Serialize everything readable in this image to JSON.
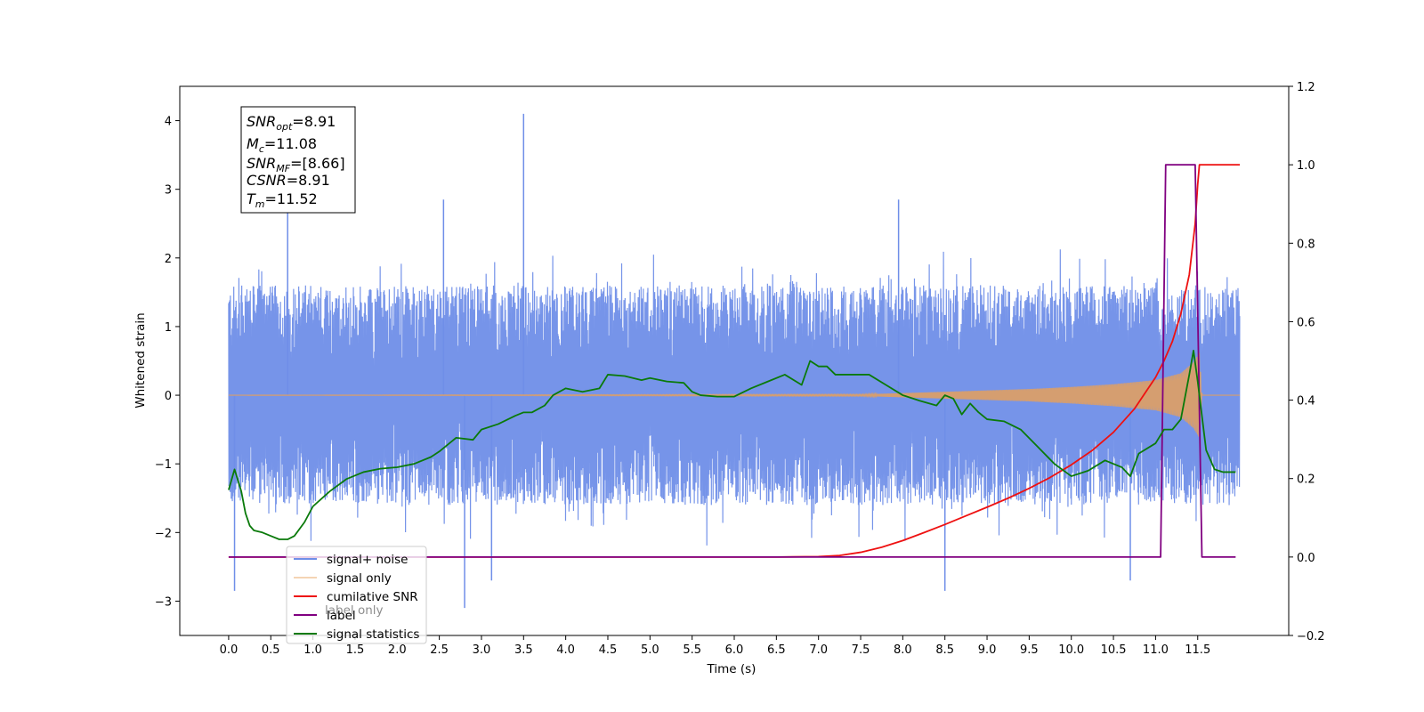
{
  "chart_data": {
    "type": "line",
    "title": "",
    "xlabel": "Time (s)",
    "ylabel_left": "Whitened strain",
    "ylabel_right": "",
    "xlim": [
      -0.58,
      12.58
    ],
    "ylim_left": [
      -3.5,
      4.5
    ],
    "ylim_right": [
      -0.2,
      1.2
    ],
    "x_ticks": [
      "0.0",
      "0.5",
      "1.0",
      "1.5",
      "2.0",
      "2.5",
      "3.0",
      "3.5",
      "4.0",
      "4.5",
      "5.0",
      "5.5",
      "6.0",
      "6.5",
      "7.0",
      "7.5",
      "8.0",
      "8.5",
      "9.0",
      "9.5",
      "10.0",
      "10.5",
      "11.0",
      "11.5"
    ],
    "y_ticks_left": [
      "−3",
      "−2",
      "−1",
      "0",
      "1",
      "2",
      "3",
      "4"
    ],
    "y_ticks_right": [
      "−0.2",
      "0.0",
      "0.2",
      "0.4",
      "0.6",
      "0.8",
      "1.0",
      "1.2"
    ],
    "colors": {
      "signal_noise": "#6f8ee8",
      "signal_only": "#e6a05a",
      "cumulative_snr": "#ee1111",
      "label": "#800080",
      "signal_statistics": "#0a7a0a"
    },
    "annotation": {
      "snr_opt": {
        "symbol": "SNR",
        "sub": "opt",
        "value": "=8.91"
      },
      "mc": {
        "symbol": "M",
        "sub": "c",
        "value": "=11.08"
      },
      "snr_mf": {
        "symbol": "SNR",
        "sub": "MF",
        "value": "=[8.66]"
      },
      "csnr": {
        "symbol": "CSNR",
        "sub": "",
        "value": "=8.91"
      },
      "tm": {
        "symbol": "T",
        "sub": "m",
        "value": "=11.52"
      }
    },
    "legend": [
      {
        "key": "signal_noise",
        "label": "signal+ noise"
      },
      {
        "key": "signal_only",
        "label": "signal only"
      },
      {
        "key": "cumulative_snr",
        "label": "cumilative SNR"
      },
      {
        "key": "label",
        "label": "label"
      },
      {
        "key": "signal_statistics",
        "label": "signal statistics"
      }
    ],
    "legend_hidden_text": "label only",
    "legend_position": "lower-left",
    "series": [
      {
        "name": "signal+ noise",
        "axis": "left",
        "x_range": [
          0,
          12
        ],
        "band": {
          "typical_min": -1.6,
          "typical_max": 1.6,
          "peak_max": 4.1,
          "peak_min": -3.1
        },
        "spikes": [
          [
            3.5,
            4.1
          ],
          [
            0.7,
            2.7
          ],
          [
            2.55,
            2.85
          ],
          [
            7.95,
            2.85
          ],
          [
            2.8,
            -3.1
          ],
          [
            0.07,
            -2.85
          ],
          [
            3.12,
            -2.7
          ],
          [
            8.5,
            -2.85
          ],
          [
            10.7,
            -2.7
          ]
        ]
      },
      {
        "name": "signal only",
        "axis": "left",
        "envelope": [
          [
            0,
            0
          ],
          [
            7.5,
            0.01
          ],
          [
            8.0,
            0.03
          ],
          [
            8.5,
            0.05
          ],
          [
            9.0,
            0.07
          ],
          [
            9.5,
            0.09
          ],
          [
            10.0,
            0.12
          ],
          [
            10.5,
            0.16
          ],
          [
            11.0,
            0.22
          ],
          [
            11.3,
            0.32
          ],
          [
            11.45,
            0.48
          ],
          [
            11.52,
            0.62
          ],
          [
            11.55,
            0
          ],
          [
            12,
            0
          ]
        ]
      },
      {
        "name": "cumilative SNR",
        "axis": "right",
        "points": [
          [
            0,
            0
          ],
          [
            6.5,
            0
          ],
          [
            7.0,
            0.001
          ],
          [
            7.25,
            0.004
          ],
          [
            7.5,
            0.012
          ],
          [
            7.75,
            0.025
          ],
          [
            8.0,
            0.042
          ],
          [
            8.25,
            0.062
          ],
          [
            8.5,
            0.083
          ],
          [
            8.75,
            0.105
          ],
          [
            9.0,
            0.127
          ],
          [
            9.25,
            0.15
          ],
          [
            9.5,
            0.175
          ],
          [
            9.75,
            0.203
          ],
          [
            10.0,
            0.235
          ],
          [
            10.25,
            0.272
          ],
          [
            10.5,
            0.318
          ],
          [
            10.75,
            0.378
          ],
          [
            11.0,
            0.458
          ],
          [
            11.1,
            0.5
          ],
          [
            11.2,
            0.55
          ],
          [
            11.3,
            0.62
          ],
          [
            11.4,
            0.72
          ],
          [
            11.47,
            0.85
          ],
          [
            11.5,
            0.95
          ],
          [
            11.52,
            1.0
          ],
          [
            12.0,
            1.0
          ]
        ]
      },
      {
        "name": "label",
        "axis": "right",
        "points": [
          [
            0,
            0
          ],
          [
            11.06,
            0
          ],
          [
            11.12,
            1.0
          ],
          [
            11.47,
            1.0
          ],
          [
            11.55,
            0
          ],
          [
            11.95,
            0
          ]
        ]
      },
      {
        "name": "signal statistics",
        "axis": "left",
        "points": [
          [
            0.0,
            -1.38
          ],
          [
            0.07,
            -1.08
          ],
          [
            0.15,
            -1.4
          ],
          [
            0.2,
            -1.72
          ],
          [
            0.25,
            -1.9
          ],
          [
            0.3,
            -1.97
          ],
          [
            0.4,
            -2.0
          ],
          [
            0.5,
            -2.05
          ],
          [
            0.6,
            -2.1
          ],
          [
            0.7,
            -2.1
          ],
          [
            0.78,
            -2.05
          ],
          [
            0.9,
            -1.85
          ],
          [
            1.0,
            -1.62
          ],
          [
            1.2,
            -1.4
          ],
          [
            1.4,
            -1.22
          ],
          [
            1.6,
            -1.12
          ],
          [
            1.8,
            -1.07
          ],
          [
            2.0,
            -1.05
          ],
          [
            2.2,
            -1.0
          ],
          [
            2.4,
            -0.9
          ],
          [
            2.5,
            -0.82
          ],
          [
            2.7,
            -0.62
          ],
          [
            2.9,
            -0.65
          ],
          [
            3.0,
            -0.5
          ],
          [
            3.2,
            -0.42
          ],
          [
            3.4,
            -0.3
          ],
          [
            3.5,
            -0.25
          ],
          [
            3.6,
            -0.25
          ],
          [
            3.75,
            -0.15
          ],
          [
            3.85,
            0.0
          ],
          [
            4.0,
            0.1
          ],
          [
            4.2,
            0.05
          ],
          [
            4.4,
            0.1
          ],
          [
            4.5,
            0.3
          ],
          [
            4.7,
            0.28
          ],
          [
            4.9,
            0.22
          ],
          [
            5.0,
            0.25
          ],
          [
            5.2,
            0.2
          ],
          [
            5.4,
            0.18
          ],
          [
            5.5,
            0.05
          ],
          [
            5.6,
            0.0
          ],
          [
            5.8,
            -0.02
          ],
          [
            6.0,
            -0.02
          ],
          [
            6.2,
            0.1
          ],
          [
            6.4,
            0.2
          ],
          [
            6.6,
            0.3
          ],
          [
            6.8,
            0.15
          ],
          [
            6.9,
            0.5
          ],
          [
            7.0,
            0.42
          ],
          [
            7.1,
            0.42
          ],
          [
            7.2,
            0.3
          ],
          [
            7.4,
            0.3
          ],
          [
            7.6,
            0.3
          ],
          [
            7.8,
            0.15
          ],
          [
            8.0,
            0.0
          ],
          [
            8.2,
            -0.08
          ],
          [
            8.4,
            -0.15
          ],
          [
            8.5,
            0.0
          ],
          [
            8.6,
            -0.05
          ],
          [
            8.7,
            -0.28
          ],
          [
            8.8,
            -0.12
          ],
          [
            8.9,
            -0.25
          ],
          [
            9.0,
            -0.35
          ],
          [
            9.2,
            -0.38
          ],
          [
            9.4,
            -0.5
          ],
          [
            9.6,
            -0.75
          ],
          [
            9.8,
            -1.0
          ],
          [
            10.0,
            -1.18
          ],
          [
            10.2,
            -1.1
          ],
          [
            10.4,
            -0.95
          ],
          [
            10.6,
            -1.05
          ],
          [
            10.7,
            -1.18
          ],
          [
            10.8,
            -0.85
          ],
          [
            11.0,
            -0.7
          ],
          [
            11.1,
            -0.5
          ],
          [
            11.2,
            -0.5
          ],
          [
            11.3,
            -0.35
          ],
          [
            11.4,
            0.3
          ],
          [
            11.45,
            0.65
          ],
          [
            11.5,
            0.2
          ],
          [
            11.6,
            -0.8
          ],
          [
            11.7,
            -1.08
          ],
          [
            11.8,
            -1.12
          ],
          [
            11.95,
            -1.12
          ]
        ]
      }
    ]
  }
}
